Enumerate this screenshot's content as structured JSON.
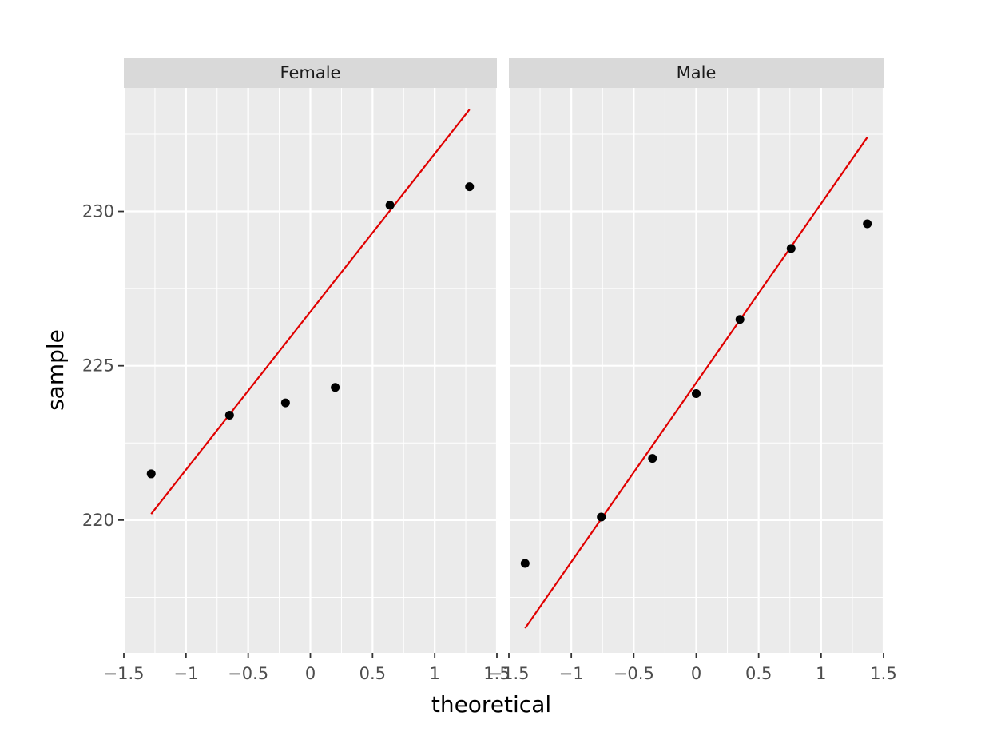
{
  "chart_data": {
    "type": "scatter",
    "xlabel": "theoretical",
    "ylabel": "sample",
    "xlim": [
      -1.5,
      1.5
    ],
    "ylim": [
      215.7,
      234.0
    ],
    "x_ticks": [
      -1.5,
      -1,
      -0.5,
      0,
      0.5,
      1,
      1.5
    ],
    "x_tick_labels": [
      "−1.5",
      "−1",
      "−0.5",
      "0",
      "0.5",
      "1",
      "1.5"
    ],
    "y_ticks": [
      220,
      225,
      230
    ],
    "y_tick_labels": [
      "220",
      "225",
      "230"
    ],
    "grid": true,
    "colors": {
      "panel": "#ebebeb",
      "strip": "#d9d9d9",
      "grid": "#ffffff",
      "points": "#000000",
      "line": "#e00000"
    },
    "facets": [
      {
        "label": "Female",
        "points": [
          {
            "x": -1.28,
            "y": 221.5
          },
          {
            "x": -0.65,
            "y": 223.4
          },
          {
            "x": -0.2,
            "y": 223.8
          },
          {
            "x": 0.2,
            "y": 224.3
          },
          {
            "x": 0.64,
            "y": 230.2
          },
          {
            "x": 1.28,
            "y": 230.8
          }
        ],
        "line": [
          {
            "x": -1.28,
            "y": 220.2
          },
          {
            "x": 1.28,
            "y": 233.3
          }
        ]
      },
      {
        "label": "Male",
        "points": [
          {
            "x": -1.37,
            "y": 218.6
          },
          {
            "x": -0.76,
            "y": 220.1
          },
          {
            "x": -0.35,
            "y": 222.0
          },
          {
            "x": 0.0,
            "y": 224.1
          },
          {
            "x": 0.35,
            "y": 226.5
          },
          {
            "x": 0.76,
            "y": 228.8
          },
          {
            "x": 1.37,
            "y": 229.6
          }
        ],
        "line": [
          {
            "x": -1.37,
            "y": 216.5
          },
          {
            "x": 1.37,
            "y": 232.4
          }
        ]
      }
    ]
  }
}
